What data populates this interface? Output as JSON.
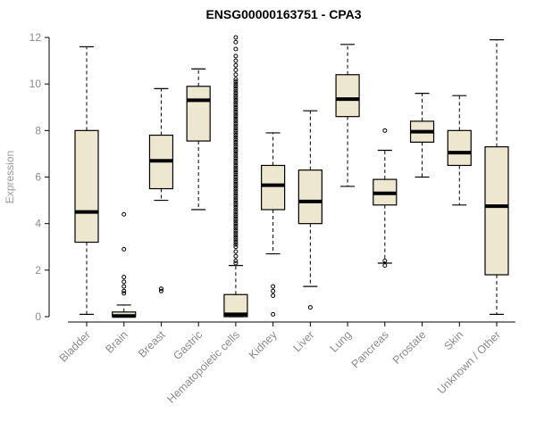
{
  "chart_data": {
    "type": "boxplot",
    "title": "ENSG00000163751 - CPA3",
    "ylabel": "Expression",
    "ylim": [
      0,
      12
    ],
    "yticks": [
      0,
      2,
      4,
      6,
      8,
      10,
      12
    ],
    "grid": false,
    "legend": null,
    "colors": {
      "box_fill": "#EDE7D0",
      "box_stroke": "#000000",
      "axis": "#000000",
      "tick_text": "#8a8a8a",
      "axis_label": "#9a9a9a",
      "title": "#000000"
    },
    "categories": [
      "Bladder",
      "Brain",
      "Breast",
      "Gastric",
      "Hematopoietic cells",
      "Kidney",
      "Liver",
      "Lung",
      "Pancreas",
      "Prostate",
      "Skin",
      "Unknown / Other"
    ],
    "series": [
      {
        "category": "Bladder",
        "low": 0.1,
        "q1": 3.2,
        "median": 4.5,
        "q3": 8.0,
        "high": 11.6,
        "outliers": []
      },
      {
        "category": "Brain",
        "low": 0.0,
        "q1": 0.0,
        "median": 0.03,
        "q3": 0.2,
        "high": 0.5,
        "outliers": [
          1.0,
          1.1,
          1.3,
          1.5,
          1.7,
          2.9,
          4.4
        ]
      },
      {
        "category": "Breast",
        "low": 5.0,
        "q1": 5.5,
        "median": 6.7,
        "q3": 7.8,
        "high": 9.8,
        "outliers": [
          1.1,
          1.2
        ]
      },
      {
        "category": "Gastric",
        "low": 4.6,
        "q1": 7.55,
        "median": 9.3,
        "q3": 9.9,
        "high": 10.65,
        "outliers": []
      },
      {
        "category": "Hematopoietic cells",
        "low": 0.0,
        "q1": 0.0,
        "median": 0.1,
        "q3": 0.95,
        "high": 2.2,
        "outliers": [
          2.3,
          2.4,
          2.6,
          2.8,
          3.0,
          3.1,
          3.2,
          3.3,
          3.4,
          3.5,
          3.6,
          3.7,
          3.8,
          3.9,
          4.0,
          4.1,
          4.2,
          4.3,
          4.4,
          4.5,
          4.6,
          4.7,
          4.8,
          4.9,
          5.0,
          5.1,
          5.2,
          5.3,
          5.4,
          5.5,
          5.6,
          5.7,
          5.8,
          5.9,
          6.0,
          6.1,
          6.2,
          6.3,
          6.4,
          6.5,
          6.6,
          6.7,
          6.8,
          6.9,
          7.0,
          7.1,
          7.2,
          7.3,
          7.4,
          7.5,
          7.6,
          7.7,
          7.8,
          7.9,
          8.0,
          8.1,
          8.2,
          8.3,
          8.4,
          8.5,
          8.6,
          8.7,
          8.8,
          8.9,
          9.0,
          9.1,
          9.2,
          9.3,
          9.4,
          9.5,
          9.6,
          9.7,
          9.8,
          9.9,
          10.0,
          10.1,
          10.2,
          10.4,
          10.6,
          10.8,
          11.0,
          11.2,
          11.5,
          11.8,
          12.0
        ]
      },
      {
        "category": "Kidney",
        "low": 2.7,
        "q1": 4.6,
        "median": 5.65,
        "q3": 6.5,
        "high": 7.9,
        "outliers": [
          0.1,
          0.9,
          1.1,
          1.3
        ]
      },
      {
        "category": "Liver",
        "low": 1.3,
        "q1": 4.0,
        "median": 4.95,
        "q3": 6.3,
        "high": 8.85,
        "outliers": [
          0.4
        ]
      },
      {
        "category": "Lung",
        "low": 5.6,
        "q1": 8.6,
        "median": 9.35,
        "q3": 10.4,
        "high": 11.7,
        "outliers": []
      },
      {
        "category": "Pancreas",
        "low": 2.3,
        "q1": 4.8,
        "median": 5.3,
        "q3": 5.9,
        "high": 7.15,
        "outliers": [
          2.2,
          2.4,
          8.0
        ]
      },
      {
        "category": "Prostate",
        "low": 6.0,
        "q1": 7.5,
        "median": 7.95,
        "q3": 8.4,
        "high": 9.6,
        "outliers": []
      },
      {
        "category": "Skin",
        "low": 4.8,
        "q1": 6.5,
        "median": 7.05,
        "q3": 8.0,
        "high": 9.5,
        "outliers": []
      },
      {
        "category": "Unknown / Other",
        "low": 0.1,
        "q1": 1.8,
        "median": 4.75,
        "q3": 7.3,
        "high": 11.9,
        "outliers": []
      }
    ]
  }
}
